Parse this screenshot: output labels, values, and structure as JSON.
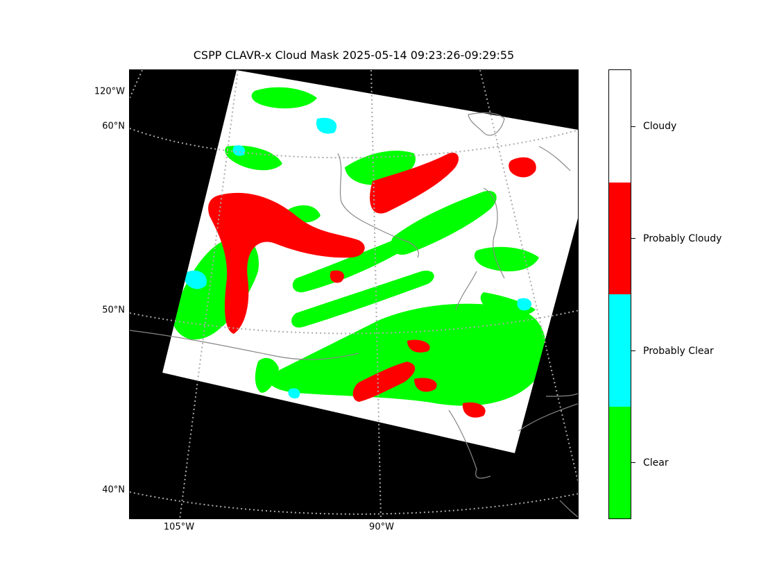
{
  "title": "CSPP CLAVR-x Cloud Mask 2025-05-14 09:23:26-09:29:55",
  "lat_labels": [
    "120°W",
    "60°N",
    "50°N",
    "40°N"
  ],
  "lon_labels": [
    "105°W",
    "90°W"
  ],
  "colorbar": {
    "categories": [
      {
        "label": "Cloudy",
        "color": "#ffffff"
      },
      {
        "label": "Probably Cloudy",
        "color": "#ff0000"
      },
      {
        "label": "Probably Clear",
        "color": "#00ffff"
      },
      {
        "label": "Clear",
        "color": "#00ff00"
      }
    ]
  },
  "colors": {
    "background": "#000000",
    "graticule": "#aaaaaa",
    "coastline": "#888888"
  }
}
